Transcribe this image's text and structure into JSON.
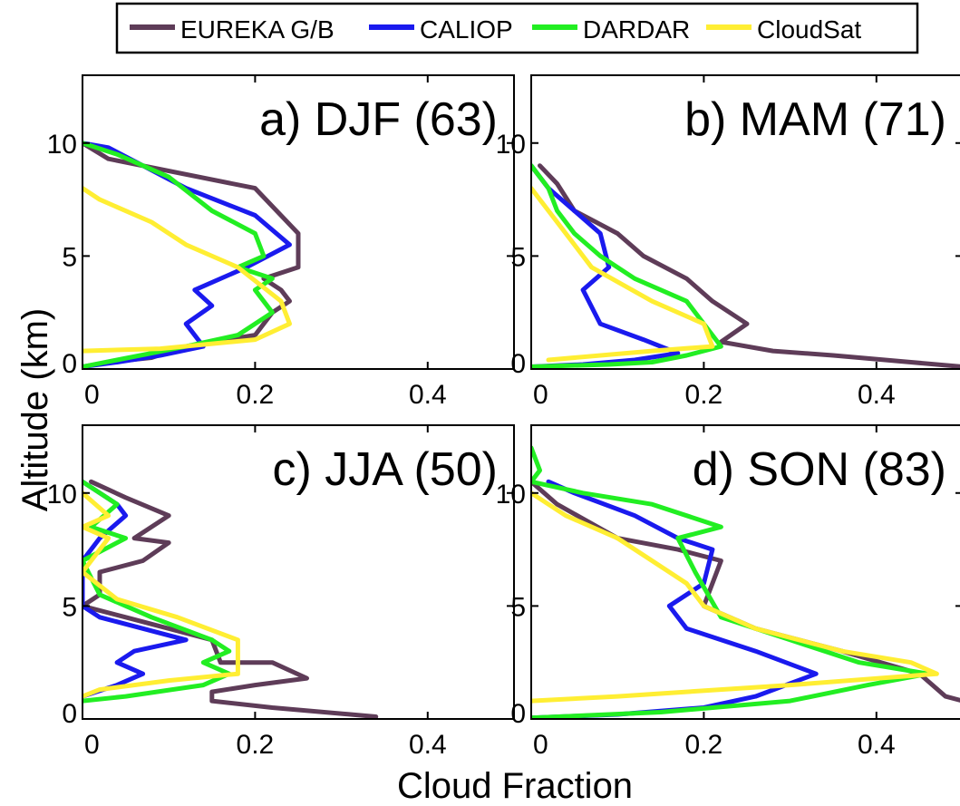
{
  "chart_data": {
    "type": "line",
    "xlabel": "Cloud Fraction",
    "ylabel": "Altitude (km)",
    "xlim": [
      0,
      0.5
    ],
    "ylim": [
      0,
      13
    ],
    "xticks": [
      0,
      0.2,
      0.4
    ],
    "xtick_labels": [
      "0",
      "0.2",
      "0.4"
    ],
    "yticks": [
      0,
      5,
      10
    ],
    "ytick_labels": [
      "0",
      "5",
      "10"
    ],
    "grid": false,
    "legend": {
      "placement": "top-center",
      "entries": [
        {
          "name": "EUREKA G/B",
          "color": "#5e3c58"
        },
        {
          "name": "CALIOP",
          "color": "#1a1aee"
        },
        {
          "name": "DARDAR",
          "color": "#22ee22"
        },
        {
          "name": "CloudSat",
          "color": "#ffee33"
        }
      ]
    },
    "panels": [
      {
        "title": "a) DJF (63)",
        "series": [
          {
            "name": "EUREKA G/B",
            "x": [
              0.0,
              0.03,
              0.2,
              0.25,
              0.25,
              0.21,
              0.23,
              0.24,
              0.22,
              0.2,
              0.12,
              0.08,
              0.03,
              0.0
            ],
            "y": [
              10.0,
              9.3,
              8.0,
              6.0,
              4.5,
              4.0,
              3.5,
              3.0,
              2.5,
              1.5,
              1.0,
              0.5,
              0.3,
              0.1
            ]
          },
          {
            "name": "CALIOP",
            "x": [
              0.0,
              0.03,
              0.07,
              0.12,
              0.2,
              0.24,
              0.19,
              0.13,
              0.15,
              0.12,
              0.14,
              0.09,
              0.04,
              0.0
            ],
            "y": [
              10.0,
              9.8,
              9.0,
              8.0,
              6.8,
              5.5,
              4.5,
              3.5,
              2.8,
              2.0,
              1.0,
              0.6,
              0.3,
              0.1
            ]
          },
          {
            "name": "DARDAR",
            "x": [
              0.0,
              0.04,
              0.1,
              0.15,
              0.2,
              0.21,
              0.18,
              0.22,
              0.2,
              0.22,
              0.18,
              0.12,
              0.08,
              0.04,
              0.0
            ],
            "y": [
              10.0,
              9.5,
              8.5,
              7.0,
              6.0,
              5.0,
              4.5,
              4.0,
              3.5,
              2.5,
              1.5,
              1.0,
              0.7,
              0.4,
              0.1
            ]
          },
          {
            "name": "CloudSat",
            "x": [
              0.0,
              0.02,
              0.08,
              0.12,
              0.18,
              0.23,
              0.24,
              0.2,
              0.09,
              0.0
            ],
            "y": [
              8.0,
              7.5,
              6.5,
              5.5,
              4.5,
              3.0,
              2.0,
              1.3,
              0.9,
              0.8
            ]
          }
        ]
      },
      {
        "title": "b) MAM (71)",
        "series": [
          {
            "name": "EUREKA G/B",
            "x": [
              0.01,
              0.03,
              0.05,
              0.1,
              0.13,
              0.18,
              0.21,
              0.25,
              0.22,
              0.28,
              0.35,
              0.44,
              0.5
            ],
            "y": [
              9.0,
              8.2,
              7.0,
              6.0,
              5.0,
              4.0,
              3.0,
              2.0,
              1.2,
              0.8,
              0.6,
              0.3,
              0.1
            ]
          },
          {
            "name": "CALIOP",
            "x": [
              0.0,
              0.02,
              0.05,
              0.08,
              0.09,
              0.06,
              0.08,
              0.13,
              0.17,
              0.12,
              0.06,
              0.0
            ],
            "y": [
              9.0,
              8.0,
              7.0,
              6.0,
              4.5,
              3.5,
              2.0,
              1.3,
              0.7,
              0.4,
              0.2,
              0.1
            ]
          },
          {
            "name": "DARDAR",
            "x": [
              0.0,
              0.02,
              0.03,
              0.05,
              0.08,
              0.12,
              0.18,
              0.22,
              0.18,
              0.14,
              0.09,
              0.0
            ],
            "y": [
              9.0,
              8.0,
              7.0,
              6.0,
              5.0,
              4.0,
              3.0,
              1.0,
              0.6,
              0.3,
              0.2,
              0.1
            ]
          },
          {
            "name": "CloudSat",
            "x": [
              0.0,
              0.03,
              0.07,
              0.14,
              0.2,
              0.21,
              0.14,
              0.02
            ],
            "y": [
              8.0,
              6.5,
              4.5,
              3.0,
              2.0,
              1.0,
              0.8,
              0.4
            ]
          }
        ]
      },
      {
        "title": "c) JJA (50)",
        "series": [
          {
            "name": "EUREKA G/B",
            "x": [
              0.01,
              0.05,
              0.1,
              0.06,
              0.1,
              0.07,
              0.02,
              0.02,
              0.0,
              0.05,
              0.15,
              0.16,
              0.22,
              0.26,
              0.2,
              0.15,
              0.15,
              0.22,
              0.34
            ],
            "y": [
              10.5,
              9.8,
              9.0,
              8.0,
              7.8,
              7.0,
              6.5,
              5.5,
              5.0,
              4.5,
              3.5,
              2.5,
              2.5,
              1.8,
              1.5,
              1.2,
              0.8,
              0.5,
              0.1
            ]
          },
          {
            "name": "CALIOP",
            "x": [
              0.0,
              0.04,
              0.05,
              0.02,
              0.0,
              0.0,
              0.02,
              0.12,
              0.06,
              0.04,
              0.07,
              0.04,
              0.0
            ],
            "y": [
              10.5,
              9.5,
              9.0,
              8.0,
              7.0,
              5.0,
              4.5,
              3.5,
              3.0,
              2.5,
              2.0,
              1.5,
              1.0
            ]
          },
          {
            "name": "DARDAR",
            "x": [
              0.0,
              0.04,
              0.01,
              0.05,
              0.0,
              0.02,
              0.08,
              0.15,
              0.17,
              0.14,
              0.17,
              0.14,
              0.05,
              0.0
            ],
            "y": [
              10.5,
              9.5,
              8.5,
              8.0,
              7.0,
              5.5,
              4.5,
              3.5,
              3.0,
              2.5,
              2.0,
              1.5,
              1.0,
              0.8
            ]
          },
          {
            "name": "CloudSat",
            "x": [
              0.0,
              0.03,
              0.0,
              0.03,
              0.0,
              0.04,
              0.11,
              0.18,
              0.18,
              0.1,
              0.02,
              0.0
            ],
            "y": [
              10.0,
              9.0,
              8.5,
              8.0,
              6.5,
              5.3,
              4.5,
              3.5,
              2.0,
              1.7,
              1.3,
              1.0
            ]
          }
        ]
      },
      {
        "title": "d) SON (83)",
        "series": [
          {
            "name": "EUREKA G/B",
            "x": [
              0.0,
              0.03,
              0.1,
              0.17,
              0.22,
              0.2,
              0.26,
              0.36,
              0.45,
              0.48,
              0.5
            ],
            "y": [
              10.5,
              9.5,
              8.0,
              7.5,
              7.0,
              5.0,
              4.0,
              3.0,
              2.0,
              1.0,
              0.8
            ]
          },
          {
            "name": "CALIOP",
            "x": [
              0.02,
              0.05,
              0.12,
              0.17,
              0.21,
              0.2,
              0.16,
              0.18,
              0.26,
              0.33,
              0.26,
              0.2,
              0.1,
              0.0
            ],
            "y": [
              10.5,
              10.0,
              9.0,
              8.0,
              7.5,
              6.0,
              5.0,
              4.0,
              3.0,
              2.0,
              1.0,
              0.5,
              0.2,
              0.05
            ]
          },
          {
            "name": "DARDAR",
            "x": [
              0.0,
              0.01,
              0.0,
              0.06,
              0.14,
              0.22,
              0.17,
              0.19,
              0.22,
              0.3,
              0.38,
              0.46,
              0.39,
              0.3,
              0.15,
              0.0
            ],
            "y": [
              12.0,
              11.0,
              10.5,
              10.0,
              9.5,
              8.5,
              8.0,
              6.5,
              4.5,
              3.5,
              2.5,
              2.0,
              1.5,
              0.8,
              0.3,
              0.05
            ]
          },
          {
            "name": "CloudSat",
            "x": [
              0.0,
              0.04,
              0.1,
              0.14,
              0.18,
              0.2,
              0.26,
              0.36,
              0.44,
              0.47,
              0.3,
              0.1,
              0.0
            ],
            "y": [
              10.0,
              9.0,
              8.0,
              7.0,
              6.0,
              5.0,
              4.0,
              3.0,
              2.5,
              2.0,
              1.5,
              1.0,
              0.8
            ]
          }
        ]
      }
    ]
  }
}
